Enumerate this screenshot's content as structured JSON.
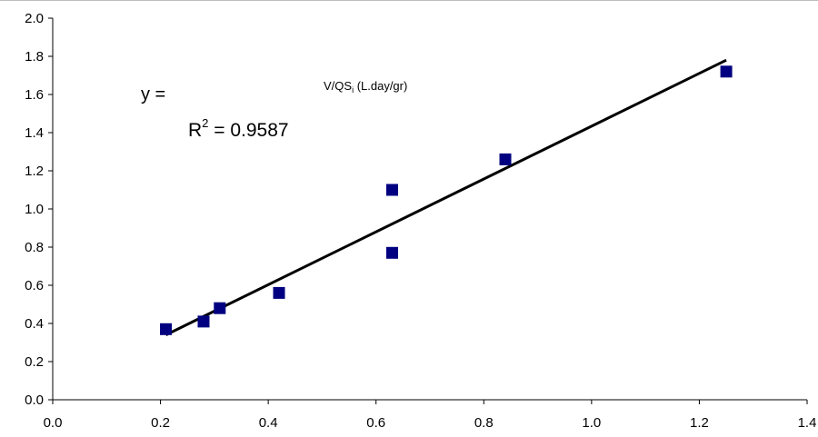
{
  "chart_data": {
    "type": "scatter",
    "title": "",
    "xlabel": "",
    "ylabel": "",
    "xlim": [
      0.0,
      1.4
    ],
    "ylim": [
      0.0,
      2.0
    ],
    "x_ticks": [
      "0.0",
      "0.2",
      "0.4",
      "0.6",
      "0.8",
      "1.0",
      "1.2",
      "1.4"
    ],
    "y_ticks": [
      "0.0",
      "0.2",
      "0.4",
      "0.6",
      "0.8",
      "1.0",
      "1.2",
      "1.4",
      "1.6",
      "1.8",
      "2.0"
    ],
    "grid": false,
    "series": [
      {
        "color": "#000080",
        "marker": "square",
        "points": [
          {
            "x": 0.21,
            "y": 0.37
          },
          {
            "x": 0.28,
            "y": 0.41
          },
          {
            "x": 0.31,
            "y": 0.48
          },
          {
            "x": 0.42,
            "y": 0.56
          },
          {
            "x": 0.63,
            "y": 1.1
          },
          {
            "x": 0.63,
            "y": 0.77
          },
          {
            "x": 0.84,
            "y": 1.26
          },
          {
            "x": 1.25,
            "y": 1.72
          }
        ]
      }
    ],
    "trendline": {
      "color": "#000000",
      "from": {
        "x": 0.21,
        "y": 0.34
      },
      "to": {
        "x": 1.25,
        "y": 1.78
      }
    },
    "annotations": {
      "equation": "y =",
      "r_squared_prefix": "R",
      "r_squared_sup": "2",
      "r_squared_value": " = 0.9587",
      "axis_note_main": "V/QS",
      "axis_note_sub": "i",
      "axis_note_units": " (L.day/gr)"
    }
  }
}
